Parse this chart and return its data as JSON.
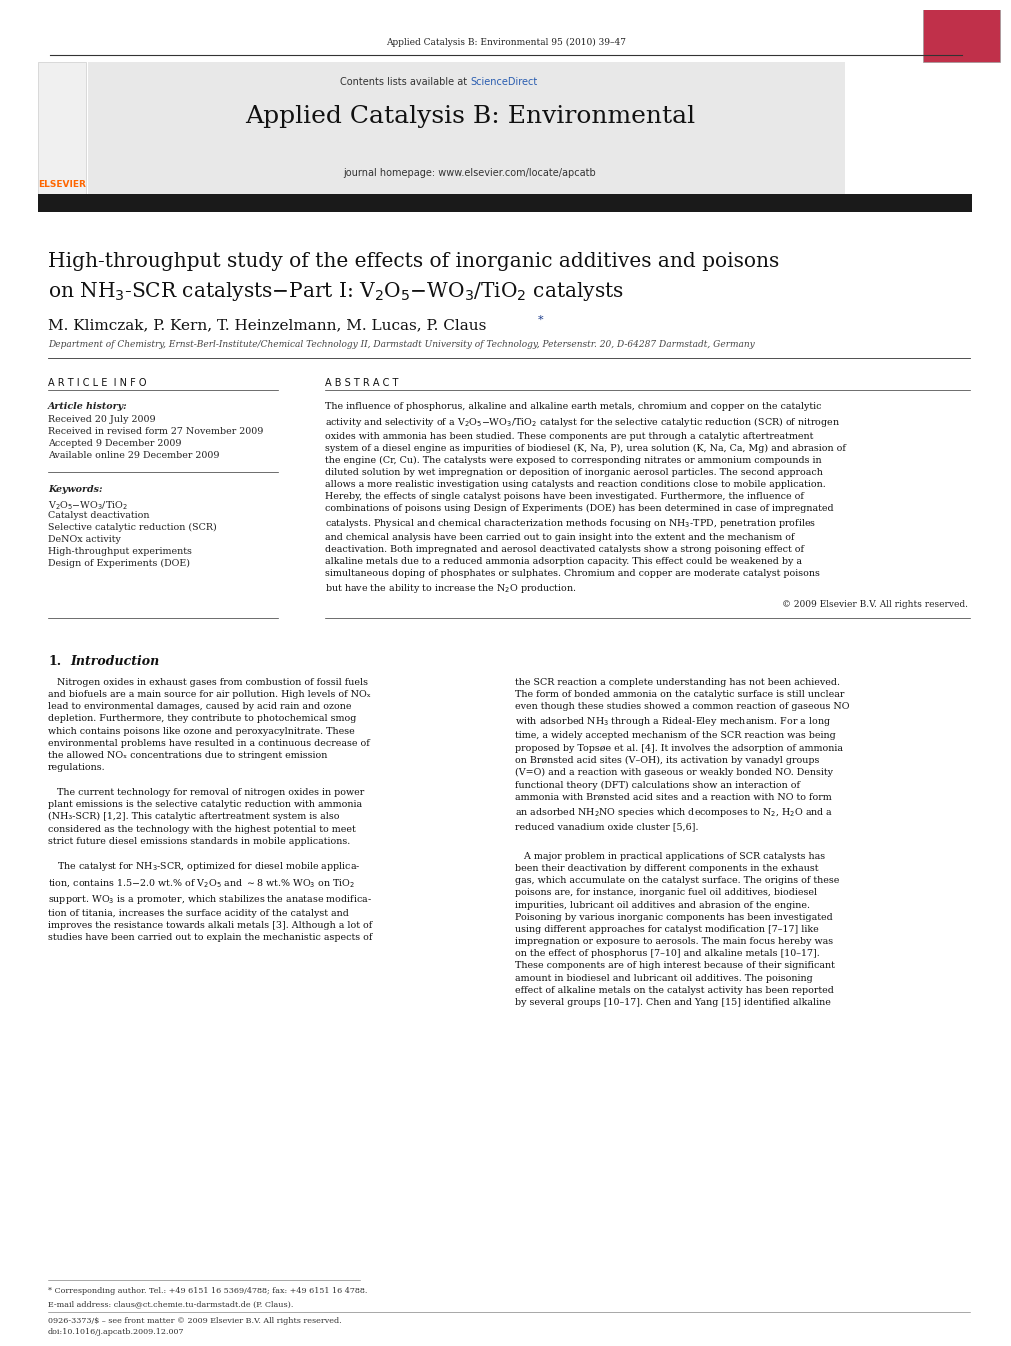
{
  "page_width": 9.92,
  "page_height": 13.23,
  "background_color": "#ffffff",
  "header_journal_ref": "Applied Catalysis B: Environmental 95 (2010) 39–47",
  "header_bg_color": "#e8e8e8",
  "header_title": "Applied Catalysis B: Environmental",
  "header_sciencedirect": "Contents lists available at ScienceDirect",
  "header_sciencedirect_link_color": "#2a6496",
  "header_homepage": "journal homepage: www.elsevier.com/locate/apcatb",
  "article_title_line1": "High-throughput study of the effects of inorganic additives and poisons",
  "article_title_line2": "on NH₃-SCR catalysts–Part I: V₂O₅–WO₃/TiO₂ catalysts",
  "authors": "M. Klimczak, P. Kern, T. Heinzelmann, M. Lucas, P. Claus",
  "affiliation": "Department of Chemistry, Ernst-Berl-Institute/Chemical Technology II, Darmstadt University of Technology, Petersenstr. 20, D-64287 Darmstadt, Germany",
  "article_info_label": "A R T I C L E  I N F O",
  "abstract_label": "A B S T R A C T",
  "article_history_label": "Article history:",
  "received_line": "Received 20 July 2009",
  "revised_line": "Received in revised form 27 November 2009",
  "accepted_line": "Accepted 9 December 2009",
  "available_line": "Available online 29 December 2009",
  "keywords_label": "Keywords:",
  "copyright_line": "© 2009 Elsevier B.V. All rights reserved.",
  "footer_line1": "0926-3373/$ – see front matter © 2009 Elsevier B.V. All rights reserved.",
  "footer_line2": "doi:10.1016/j.apcatb.2009.12.007",
  "footnote1": "* Corresponding author. Tel.: +49 6151 16 5369/4788; fax: +49 6151 16 4788.",
  "footnote2": "E-mail address: claus@ct.chemie.tu-darmstadt.de (P. Claus).",
  "dark_bar_color": "#1a1a1a",
  "elsevier_color": "#ff6600",
  "link_color": "#2a5db0"
}
